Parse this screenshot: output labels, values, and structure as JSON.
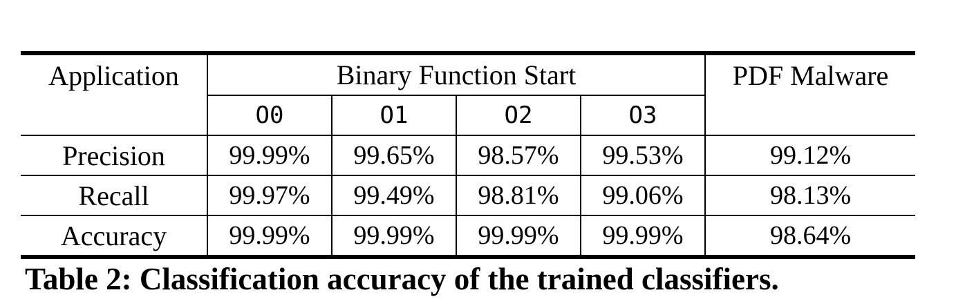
{
  "table": {
    "header": {
      "application": "Application",
      "binary_group": "Binary Function Start",
      "pdf": "PDF Malware",
      "opt_levels": [
        "O0",
        "O1",
        "O2",
        "O3"
      ]
    },
    "rows": [
      {
        "label": "Precision",
        "values": [
          "99.99%",
          "99.65%",
          "98.57%",
          "99.53%"
        ],
        "pdf": "99.12%"
      },
      {
        "label": "Recall",
        "values": [
          "99.97%",
          "99.49%",
          "98.81%",
          "99.06%"
        ],
        "pdf": "98.13%"
      },
      {
        "label": "Accuracy",
        "values": [
          "99.99%",
          "99.99%",
          "99.99%",
          "99.99%"
        ],
        "pdf": "98.64%"
      }
    ]
  },
  "caption": "Table 2: Classification accuracy of the trained classifiers."
}
